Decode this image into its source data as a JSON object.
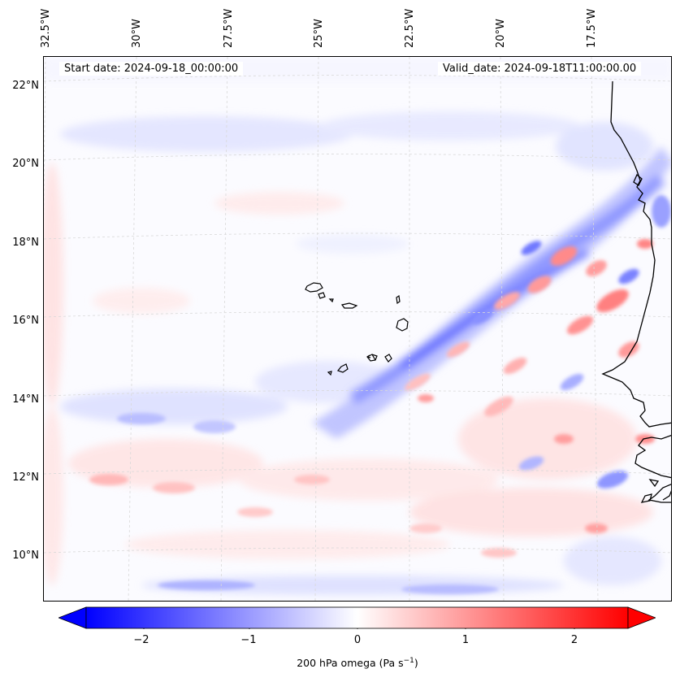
{
  "header": {
    "start_date": "Start date: 2024-09-18_00:00:00",
    "valid_date": "Valid_date: 2024-09-18T11:00:00.00"
  },
  "map": {
    "projection": "lambert conformal",
    "lon_labels": [
      "32.5°W",
      "30°W",
      "27.5°W",
      "25°W",
      "22.5°W",
      "20°W",
      "17.5°W"
    ],
    "lat_labels": [
      "22°N",
      "20°N",
      "18°N",
      "16°N",
      "14°N",
      "12°N",
      "10°N"
    ],
    "features": [
      "coastline-west-africa",
      "cape-verde-islands"
    ],
    "gridlines": "dashed-gray"
  },
  "colorbar": {
    "ticks": [
      "−2",
      "−1",
      "0",
      "1",
      "2"
    ],
    "label_main": "200 hPa omega (Pa s",
    "label_sup": "−1",
    "label_end": ")",
    "color_negative": "#0000ff",
    "color_zero": "#ffffff",
    "color_positive": "#ff0000",
    "extend": "both"
  }
}
